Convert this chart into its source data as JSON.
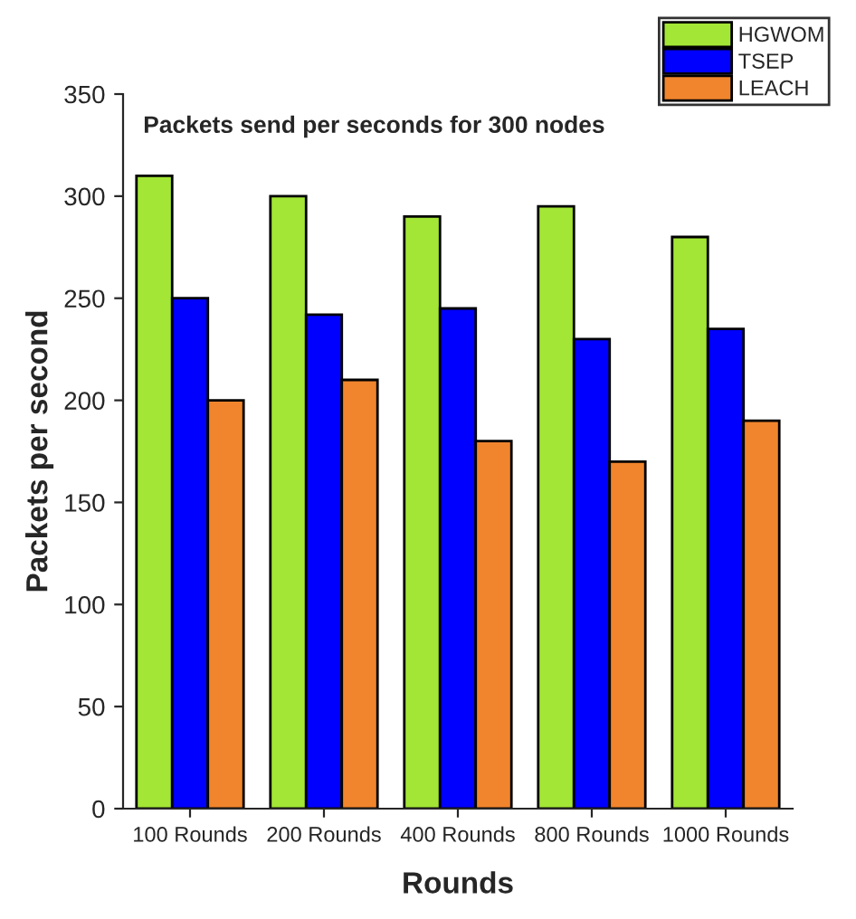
{
  "chart_data": {
    "type": "bar",
    "title": "Packets send per seconds for 300 nodes",
    "xlabel": "Rounds",
    "ylabel": "Packets per second",
    "categories": [
      "100 Rounds",
      "200 Rounds",
      "400 Rounds",
      "800 Rounds",
      "1000 Rounds"
    ],
    "series": [
      {
        "name": "HGWOM",
        "color": "#a3e635",
        "values": [
          310,
          300,
          290,
          295,
          280
        ]
      },
      {
        "name": "TSEP",
        "color": "#0000ff",
        "values": [
          250,
          242,
          245,
          230,
          235
        ]
      },
      {
        "name": "LEACH",
        "color": "#f0852d",
        "values": [
          200,
          210,
          180,
          170,
          190
        ]
      }
    ],
    "ylim": [
      0,
      350
    ],
    "yticks": [
      0,
      50,
      100,
      150,
      200,
      250,
      300,
      350
    ],
    "grid": false,
    "legend": "top right"
  }
}
